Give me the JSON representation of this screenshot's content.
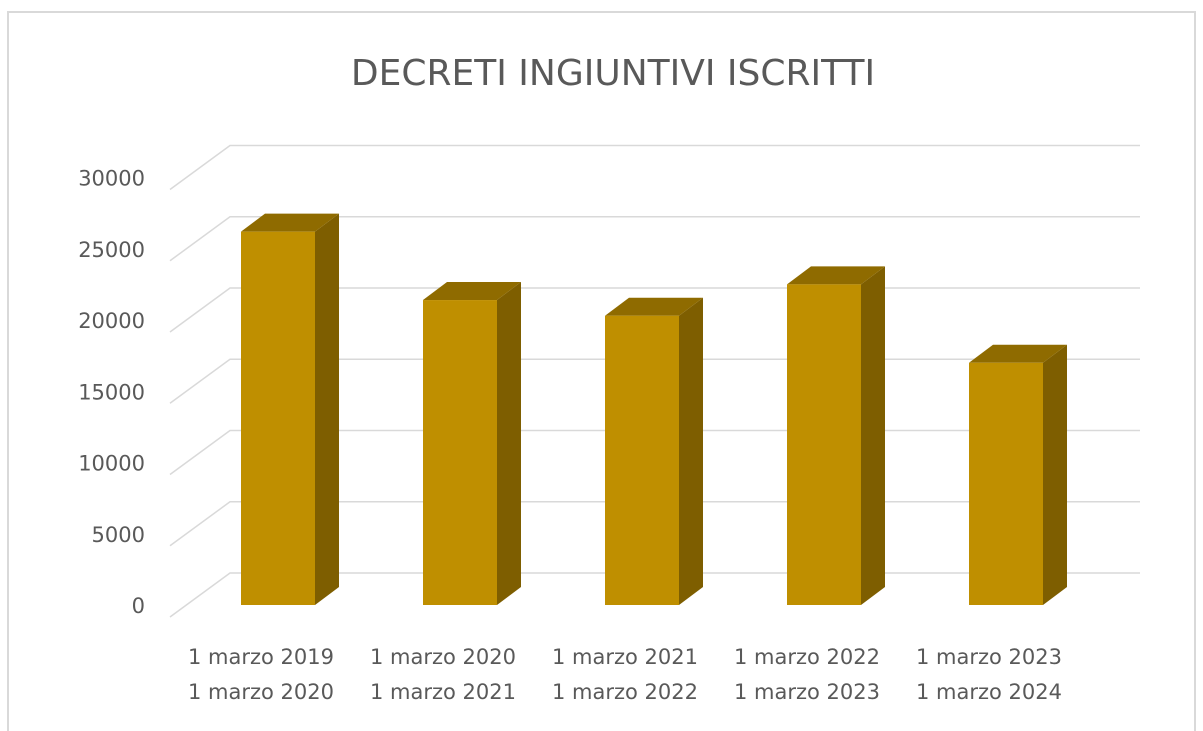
{
  "chart_data": {
    "type": "bar3d",
    "title": "DECRETI INGIUNTIVI ISCRITTI",
    "categories": [
      [
        "1 marzo 2019",
        "1 marzo 2020"
      ],
      [
        "1 marzo 2020",
        "1 marzo 2021"
      ],
      [
        "1 marzo 2021",
        "1 marzo 2022"
      ],
      [
        "1 marzo 2022",
        "1 marzo 2023"
      ],
      [
        "1 marzo 2023",
        "1 marzo 2024"
      ]
    ],
    "values": [
      26200,
      21400,
      20300,
      22500,
      17000
    ],
    "color": "#bf8f00",
    "ylim": [
      0,
      30000
    ],
    "yticks": [
      0,
      5000,
      10000,
      15000,
      20000,
      25000,
      30000
    ],
    "grid": true
  }
}
